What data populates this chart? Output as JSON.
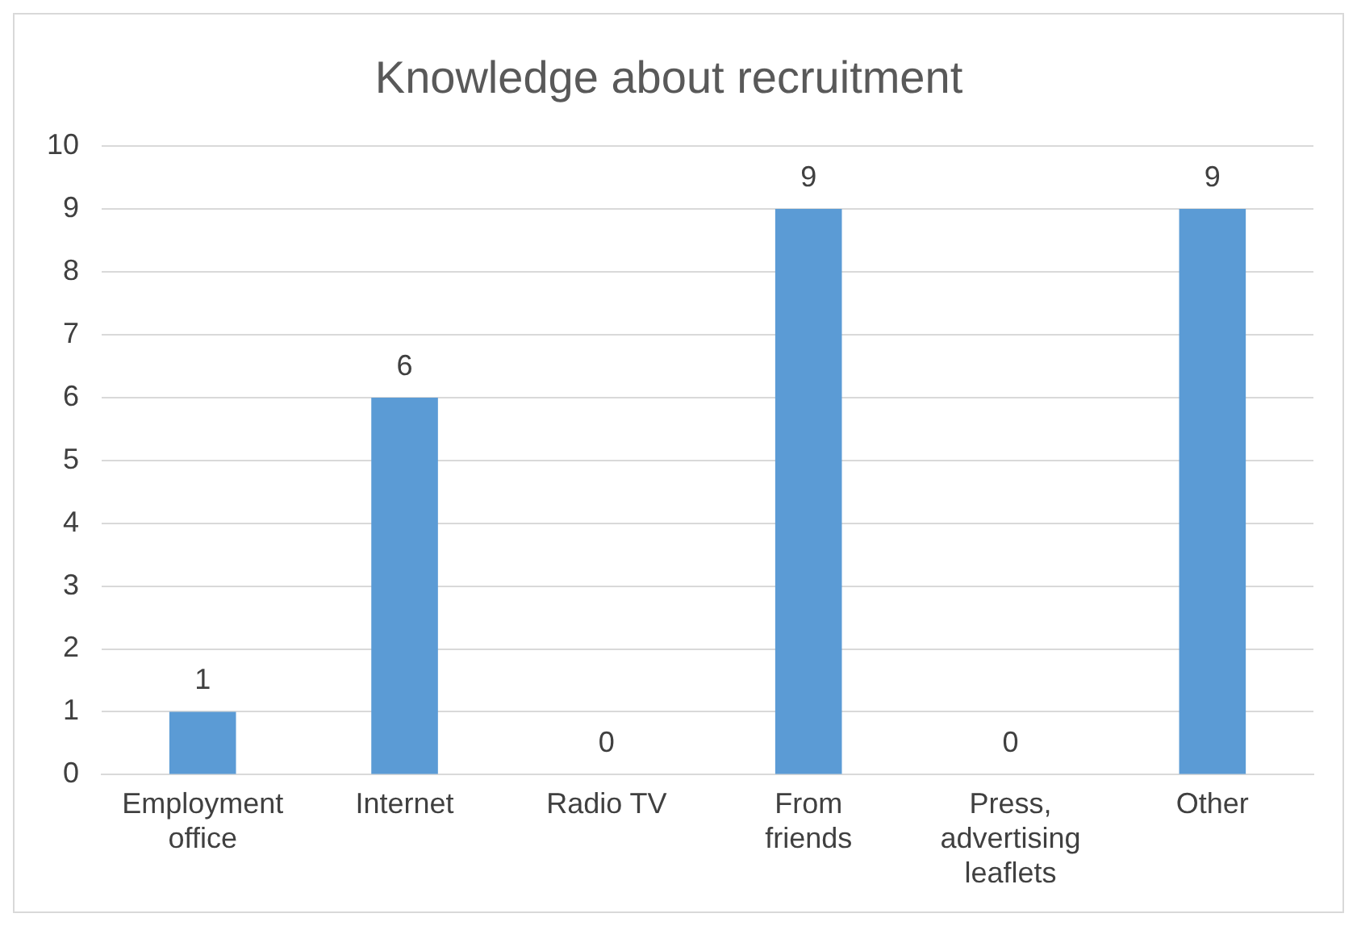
{
  "chart_data": {
    "type": "bar",
    "title": "Knowledge about recruitment",
    "categories": [
      "Employment office",
      "Internet",
      "Radio TV",
      "From friends",
      "Press, advertising leaflets",
      "Other"
    ],
    "values": [
      1,
      6,
      0,
      9,
      0,
      9
    ],
    "color": "#5b9bd5",
    "ylim": [
      0,
      10
    ],
    "yticks": [
      0,
      1,
      2,
      3,
      4,
      5,
      6,
      7,
      8,
      9,
      10
    ],
    "grid": "y",
    "data_labels": true
  }
}
